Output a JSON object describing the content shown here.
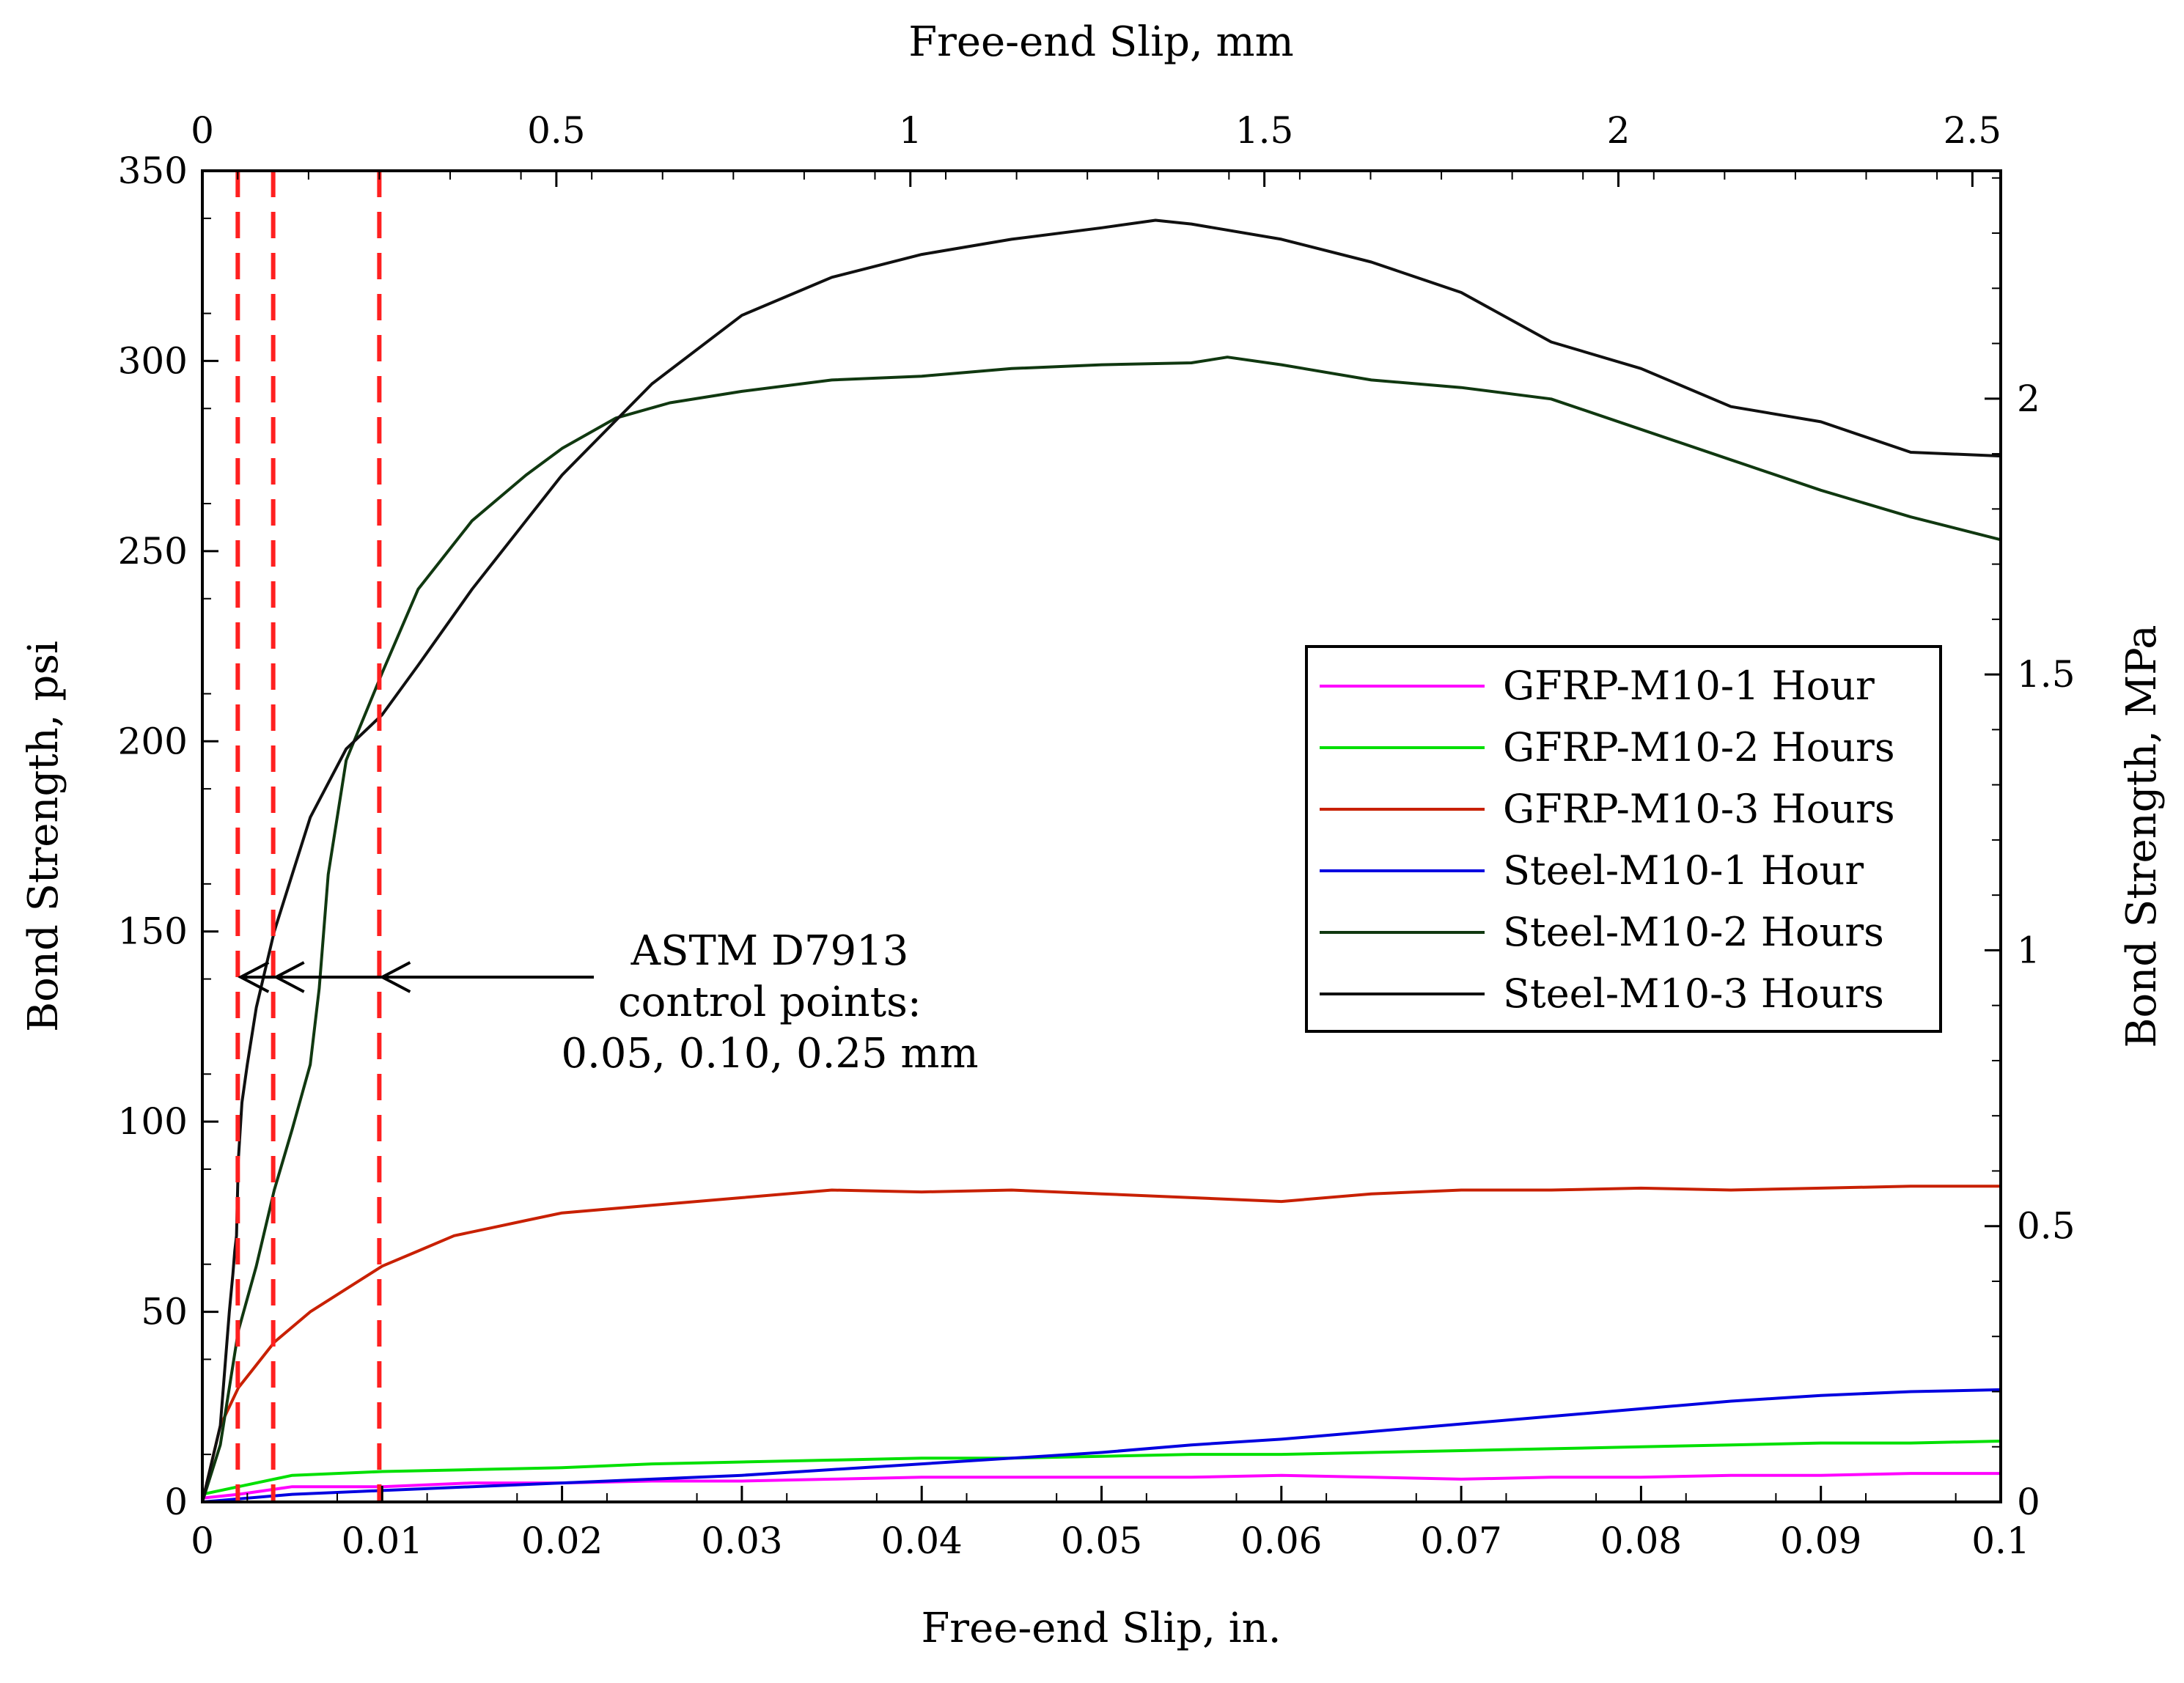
{
  "chart_data": {
    "type": "line",
    "x_bottom": {
      "label": "Free-end Slip, in.",
      "lim": [
        0,
        0.1
      ],
      "ticks": [
        0,
        0.01,
        0.02,
        0.03,
        0.04,
        0.05,
        0.06,
        0.07,
        0.08,
        0.09,
        0.1
      ],
      "tick_labels": [
        "0",
        "0.01",
        "0.02",
        "0.03",
        "0.04",
        "0.05",
        "0.06",
        "0.07",
        "0.08",
        "0.09",
        "0.1"
      ]
    },
    "x_top": {
      "label": "Free-end Slip, mm",
      "lim": [
        0,
        2.54
      ],
      "ticks": [
        0,
        0.5,
        1,
        1.5,
        2,
        2.5
      ],
      "tick_labels": [
        "0",
        "0.5",
        "1",
        "1.5",
        "2",
        "2.5"
      ]
    },
    "y_left": {
      "label": "Bond Strength, psi",
      "lim": [
        0,
        350
      ],
      "ticks": [
        0,
        50,
        100,
        150,
        200,
        250,
        300,
        350
      ],
      "tick_labels": [
        "0",
        "50",
        "100",
        "150",
        "200",
        "250",
        "300",
        "350"
      ]
    },
    "y_right": {
      "label": "Bond Strength, MPa",
      "lim": [
        0,
        2.413
      ],
      "ticks": [
        0,
        0.5,
        1,
        1.5,
        2
      ],
      "tick_labels": [
        "0",
        "0.5",
        "1",
        "1.5",
        "2"
      ]
    },
    "legend_position": "center-right",
    "series": [
      {
        "name": "GFRP-M10-1 Hour",
        "color": "#ff00ff",
        "x": [
          0,
          0.002,
          0.005,
          0.01,
          0.015,
          0.02,
          0.025,
          0.03,
          0.035,
          0.04,
          0.045,
          0.05,
          0.055,
          0.06,
          0.065,
          0.07,
          0.075,
          0.08,
          0.085,
          0.09,
          0.095,
          0.1
        ],
        "y": [
          1,
          2,
          4,
          4,
          5,
          5,
          5.5,
          5.5,
          6,
          6.5,
          6.5,
          6.5,
          6.5,
          7,
          6.5,
          6,
          6.5,
          6.5,
          7,
          7,
          7.5,
          7.5
        ]
      },
      {
        "name": "GFRP-M10-2 Hours",
        "color": "#00e000",
        "x": [
          0,
          0.002,
          0.005,
          0.01,
          0.015,
          0.02,
          0.025,
          0.03,
          0.035,
          0.04,
          0.045,
          0.05,
          0.055,
          0.06,
          0.065,
          0.07,
          0.075,
          0.08,
          0.085,
          0.09,
          0.095,
          0.1
        ],
        "y": [
          2,
          4,
          7,
          8,
          8.5,
          9,
          10,
          10.5,
          11,
          11.5,
          11.5,
          12,
          12.5,
          12.5,
          13,
          13.5,
          14,
          14.5,
          15,
          15.5,
          15.5,
          16
        ]
      },
      {
        "name": "GFRP-M10-3 Hours",
        "color": "#c82000",
        "x": [
          0,
          0.001,
          0.002,
          0.003,
          0.004,
          0.006,
          0.008,
          0.01,
          0.012,
          0.014,
          0.016,
          0.018,
          0.02,
          0.025,
          0.03,
          0.035,
          0.04,
          0.045,
          0.05,
          0.055,
          0.06,
          0.065,
          0.07,
          0.075,
          0.08,
          0.085,
          0.09,
          0.095,
          0.1
        ],
        "y": [
          0,
          20,
          30,
          36,
          42,
          50,
          56,
          62,
          66,
          70,
          72,
          74,
          76,
          78,
          80,
          82,
          81.5,
          82,
          81,
          80,
          79,
          81,
          82,
          82,
          82.5,
          82,
          82.5,
          83,
          83
        ]
      },
      {
        "name": "Steel-M10-1 Hour",
        "color": "#0000e0",
        "x": [
          0,
          0.005,
          0.01,
          0.015,
          0.02,
          0.025,
          0.03,
          0.035,
          0.04,
          0.045,
          0.05,
          0.055,
          0.06,
          0.065,
          0.07,
          0.075,
          0.08,
          0.085,
          0.09,
          0.095,
          0.1
        ],
        "y": [
          0,
          2,
          3,
          4,
          5,
          6,
          7,
          8.5,
          10,
          11.5,
          13,
          15,
          16.5,
          18.5,
          20.5,
          22.5,
          24.5,
          26.5,
          28,
          29,
          29.5
        ]
      },
      {
        "name": "Steel-M10-2 Hours",
        "color": "#103810",
        "x": [
          0,
          0.001,
          0.002,
          0.003,
          0.004,
          0.005,
          0.006,
          0.0065,
          0.007,
          0.008,
          0.01,
          0.012,
          0.015,
          0.018,
          0.02,
          0.023,
          0.026,
          0.03,
          0.035,
          0.04,
          0.045,
          0.05,
          0.055,
          0.057,
          0.06,
          0.065,
          0.07,
          0.075,
          0.08,
          0.085,
          0.09,
          0.095,
          0.1
        ],
        "y": [
          0,
          15,
          45,
          62,
          82,
          98,
          115,
          135,
          165,
          195,
          218,
          240,
          258,
          270,
          277,
          285,
          289,
          292,
          295,
          296,
          298,
          299,
          299.5,
          301,
          299,
          295,
          293,
          290,
          282,
          274,
          266,
          259,
          253
        ]
      },
      {
        "name": "Steel-M10-3 Hours",
        "color": "#101010",
        "x": [
          0,
          0.001,
          0.0015,
          0.0017,
          0.0018,
          0.0019,
          0.002,
          0.0022,
          0.0025,
          0.003,
          0.004,
          0.005,
          0.006,
          0.008,
          0.01,
          0.012,
          0.015,
          0.018,
          0.02,
          0.025,
          0.03,
          0.035,
          0.04,
          0.045,
          0.05,
          0.053,
          0.055,
          0.06,
          0.065,
          0.07,
          0.075,
          0.08,
          0.085,
          0.09,
          0.095,
          0.1
        ],
        "y": [
          0,
          20,
          50,
          60,
          66,
          70,
          90,
          105,
          115,
          130,
          150,
          165,
          180,
          198,
          207,
          220,
          240,
          258,
          270,
          294,
          312,
          322,
          328,
          332,
          335,
          337,
          336,
          332,
          326,
          318,
          305,
          298,
          288,
          284,
          276,
          275
        ]
      }
    ],
    "reference_lines": {
      "x": [
        0.00197,
        0.00394,
        0.00984
      ],
      "color": "#ff2020"
    },
    "annotation": {
      "lines": [
        "ASTM D7913",
        "control points:",
        "0.05, 0.10, 0.25 mm"
      ],
      "arrow_y": 138
    }
  }
}
